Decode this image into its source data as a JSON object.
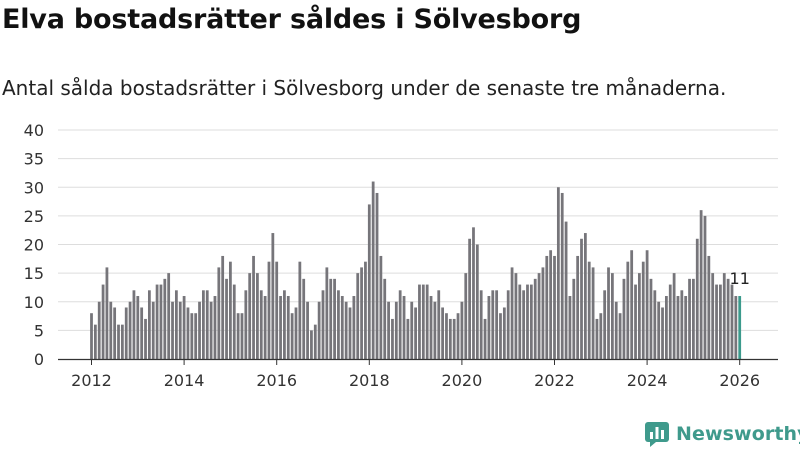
{
  "chart_data": {
    "type": "bar",
    "title": "Elva bostadsrätter såldes i Sölvesborg",
    "subtitle": "Antal sålda bostadsrätter i Sölvesborg under de senaste tre månaderna.",
    "xlabel": "",
    "ylabel": "",
    "ylim": [
      0,
      40
    ],
    "yticks": [
      "0",
      "5",
      "10",
      "15",
      "20",
      "25",
      "30",
      "35",
      "40"
    ],
    "xticks": [
      "2012",
      "2014",
      "2016",
      "2018",
      "2020",
      "2022",
      "2024",
      "2026"
    ],
    "grid": true,
    "first_period": "2012-01",
    "last_value_label": "11",
    "colors": {
      "bar": "#76757a",
      "highlight": "#3b9a8c",
      "grid": "#dddddd",
      "axis": "#333333"
    },
    "values": [
      8,
      6,
      10,
      13,
      16,
      10,
      9,
      6,
      6,
      9,
      10,
      12,
      11,
      9,
      7,
      12,
      10,
      13,
      13,
      14,
      15,
      10,
      12,
      10,
      11,
      9,
      8,
      8,
      10,
      12,
      12,
      10,
      11,
      16,
      18,
      14,
      17,
      13,
      8,
      8,
      12,
      15,
      18,
      15,
      12,
      11,
      17,
      22,
      17,
      11,
      12,
      11,
      8,
      9,
      17,
      14,
      10,
      5,
      6,
      10,
      12,
      16,
      14,
      14,
      12,
      11,
      10,
      9,
      11,
      15,
      16,
      17,
      27,
      31,
      29,
      18,
      14,
      10,
      7,
      10,
      12,
      11,
      7,
      10,
      9,
      13,
      13,
      13,
      11,
      10,
      12,
      9,
      8,
      7,
      7,
      8,
      10,
      15,
      21,
      23,
      20,
      12,
      7,
      11,
      12,
      12,
      8,
      9,
      12,
      16,
      15,
      13,
      12,
      13,
      13,
      14,
      15,
      16,
      18,
      19,
      18,
      30,
      29,
      24,
      11,
      14,
      18,
      21,
      22,
      17,
      16,
      7,
      8,
      12,
      16,
      15,
      10,
      8,
      14,
      17,
      19,
      13,
      15,
      17,
      19,
      14,
      12,
      10,
      9,
      11,
      13,
      15,
      11,
      12,
      11,
      14,
      14,
      21,
      26,
      25,
      18,
      15,
      13,
      13,
      15,
      14,
      13,
      11,
      11
    ]
  },
  "brand": {
    "name": "Newsworthy",
    "logo_icon": "newsworthy-logo-icon",
    "color": "#3f9a8c"
  }
}
